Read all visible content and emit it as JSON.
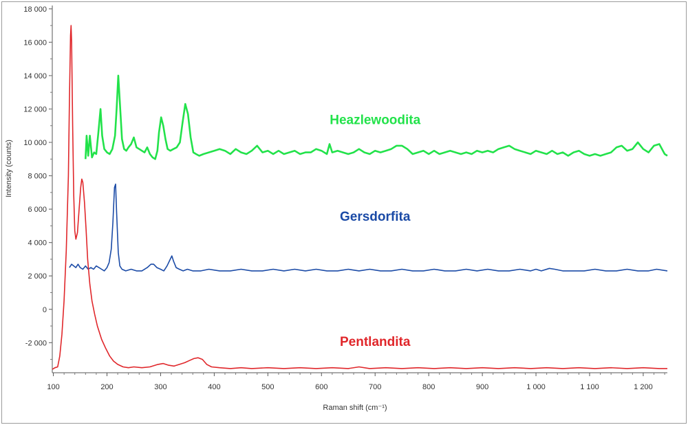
{
  "chart_data": {
    "type": "line",
    "title": "",
    "xlabel": "Raman shift (cm⁻¹)",
    "ylabel": "Intensity (counts)",
    "xlim": [
      98,
      1245
    ],
    "ylim": [
      -3800,
      18200
    ],
    "x_ticks": [
      100,
      200,
      300,
      400,
      500,
      600,
      700,
      800,
      900,
      1000,
      1100,
      1200
    ],
    "x_tick_labels": [
      "100",
      "200",
      "300",
      "400",
      "500",
      "600",
      "700",
      "800",
      "900",
      "1 000",
      "1 100",
      "1 200"
    ],
    "y_ticks": [
      -2000,
      0,
      2000,
      4000,
      6000,
      8000,
      10000,
      12000,
      14000,
      16000,
      18000
    ],
    "y_tick_labels": [
      "-2 000",
      "0",
      "2 000",
      "4 000",
      "6 000",
      "8 000",
      "10 000",
      "12 000",
      "14 000",
      "16 000",
      "18 000"
    ],
    "grid": false,
    "series": [
      {
        "name": "Heazlewoodita",
        "color": "#22e24a",
        "label_x": 700,
        "label_y": 11100,
        "points": [
          [
            160,
            9000
          ],
          [
            162,
            10400
          ],
          [
            165,
            9200
          ],
          [
            168,
            10400
          ],
          [
            172,
            9100
          ],
          [
            176,
            9400
          ],
          [
            180,
            9300
          ],
          [
            184,
            10600
          ],
          [
            188,
            12000
          ],
          [
            191,
            10400
          ],
          [
            195,
            9600
          ],
          [
            200,
            9400
          ],
          [
            205,
            9300
          ],
          [
            210,
            9600
          ],
          [
            215,
            10400
          ],
          [
            218,
            12000
          ],
          [
            221,
            14000
          ],
          [
            224,
            12400
          ],
          [
            228,
            10200
          ],
          [
            232,
            9600
          ],
          [
            236,
            9500
          ],
          [
            240,
            9700
          ],
          [
            245,
            9900
          ],
          [
            250,
            10300
          ],
          [
            255,
            9700
          ],
          [
            260,
            9600
          ],
          [
            265,
            9500
          ],
          [
            270,
            9400
          ],
          [
            275,
            9700
          ],
          [
            280,
            9300
          ],
          [
            285,
            9100
          ],
          [
            290,
            9000
          ],
          [
            294,
            9500
          ],
          [
            297,
            10600
          ],
          [
            301,
            11500
          ],
          [
            305,
            11000
          ],
          [
            309,
            10200
          ],
          [
            313,
            9600
          ],
          [
            318,
            9500
          ],
          [
            324,
            9600
          ],
          [
            330,
            9700
          ],
          [
            336,
            10000
          ],
          [
            341,
            11200
          ],
          [
            346,
            12300
          ],
          [
            351,
            11700
          ],
          [
            356,
            10300
          ],
          [
            361,
            9400
          ],
          [
            366,
            9300
          ],
          [
            372,
            9200
          ],
          [
            380,
            9300
          ],
          [
            390,
            9400
          ],
          [
            400,
            9500
          ],
          [
            410,
            9600
          ],
          [
            420,
            9500
          ],
          [
            430,
            9300
          ],
          [
            440,
            9600
          ],
          [
            450,
            9400
          ],
          [
            460,
            9300
          ],
          [
            470,
            9500
          ],
          [
            480,
            9800
          ],
          [
            490,
            9400
          ],
          [
            500,
            9500
          ],
          [
            510,
            9300
          ],
          [
            520,
            9500
          ],
          [
            530,
            9300
          ],
          [
            540,
            9400
          ],
          [
            550,
            9500
          ],
          [
            560,
            9300
          ],
          [
            570,
            9400
          ],
          [
            580,
            9400
          ],
          [
            590,
            9600
          ],
          [
            600,
            9500
          ],
          [
            610,
            9300
          ],
          [
            615,
            9900
          ],
          [
            620,
            9400
          ],
          [
            630,
            9500
          ],
          [
            640,
            9400
          ],
          [
            650,
            9300
          ],
          [
            660,
            9400
          ],
          [
            670,
            9600
          ],
          [
            680,
            9400
          ],
          [
            690,
            9300
          ],
          [
            700,
            9500
          ],
          [
            710,
            9400
          ],
          [
            720,
            9500
          ],
          [
            730,
            9600
          ],
          [
            740,
            9800
          ],
          [
            750,
            9800
          ],
          [
            760,
            9600
          ],
          [
            770,
            9300
          ],
          [
            780,
            9400
          ],
          [
            790,
            9500
          ],
          [
            800,
            9300
          ],
          [
            810,
            9500
          ],
          [
            820,
            9300
          ],
          [
            830,
            9400
          ],
          [
            840,
            9500
          ],
          [
            850,
            9400
          ],
          [
            860,
            9300
          ],
          [
            870,
            9400
          ],
          [
            880,
            9300
          ],
          [
            890,
            9500
          ],
          [
            900,
            9400
          ],
          [
            910,
            9500
          ],
          [
            920,
            9400
          ],
          [
            930,
            9600
          ],
          [
            940,
            9700
          ],
          [
            950,
            9800
          ],
          [
            960,
            9600
          ],
          [
            970,
            9500
          ],
          [
            980,
            9400
          ],
          [
            990,
            9300
          ],
          [
            1000,
            9500
          ],
          [
            1010,
            9400
          ],
          [
            1020,
            9300
          ],
          [
            1030,
            9500
          ],
          [
            1040,
            9300
          ],
          [
            1050,
            9400
          ],
          [
            1060,
            9200
          ],
          [
            1070,
            9400
          ],
          [
            1080,
            9500
          ],
          [
            1090,
            9300
          ],
          [
            1100,
            9200
          ],
          [
            1110,
            9300
          ],
          [
            1120,
            9200
          ],
          [
            1130,
            9300
          ],
          [
            1140,
            9400
          ],
          [
            1150,
            9700
          ],
          [
            1160,
            9800
          ],
          [
            1170,
            9500
          ],
          [
            1180,
            9600
          ],
          [
            1190,
            10000
          ],
          [
            1200,
            9600
          ],
          [
            1210,
            9400
          ],
          [
            1220,
            9800
          ],
          [
            1230,
            9900
          ],
          [
            1240,
            9300
          ],
          [
            1245,
            9200
          ]
        ]
      },
      {
        "name": "Gersdorfita",
        "color": "#1a4aa6",
        "label_x": 700,
        "label_y": 5300,
        "points": [
          [
            130,
            2500
          ],
          [
            134,
            2700
          ],
          [
            138,
            2600
          ],
          [
            142,
            2500
          ],
          [
            146,
            2700
          ],
          [
            150,
            2500
          ],
          [
            155,
            2400
          ],
          [
            160,
            2600
          ],
          [
            165,
            2400
          ],
          [
            170,
            2500
          ],
          [
            175,
            2400
          ],
          [
            180,
            2600
          ],
          [
            185,
            2500
          ],
          [
            190,
            2400
          ],
          [
            195,
            2300
          ],
          [
            200,
            2500
          ],
          [
            204,
            2800
          ],
          [
            208,
            3600
          ],
          [
            211,
            5200
          ],
          [
            214,
            7300
          ],
          [
            216,
            7500
          ],
          [
            218,
            5800
          ],
          [
            221,
            3400
          ],
          [
            224,
            2600
          ],
          [
            228,
            2400
          ],
          [
            235,
            2300
          ],
          [
            245,
            2400
          ],
          [
            255,
            2300
          ],
          [
            265,
            2300
          ],
          [
            275,
            2500
          ],
          [
            282,
            2700
          ],
          [
            287,
            2700
          ],
          [
            293,
            2500
          ],
          [
            300,
            2400
          ],
          [
            306,
            2300
          ],
          [
            312,
            2600
          ],
          [
            318,
            3000
          ],
          [
            321,
            3200
          ],
          [
            324,
            2900
          ],
          [
            329,
            2500
          ],
          [
            335,
            2400
          ],
          [
            342,
            2300
          ],
          [
            350,
            2400
          ],
          [
            360,
            2300
          ],
          [
            375,
            2300
          ],
          [
            390,
            2400
          ],
          [
            410,
            2300
          ],
          [
            430,
            2300
          ],
          [
            450,
            2400
          ],
          [
            470,
            2300
          ],
          [
            490,
            2300
          ],
          [
            510,
            2400
          ],
          [
            530,
            2300
          ],
          [
            550,
            2400
          ],
          [
            570,
            2300
          ],
          [
            590,
            2400
          ],
          [
            610,
            2300
          ],
          [
            630,
            2300
          ],
          [
            650,
            2400
          ],
          [
            670,
            2300
          ],
          [
            690,
            2400
          ],
          [
            710,
            2300
          ],
          [
            730,
            2300
          ],
          [
            750,
            2400
          ],
          [
            770,
            2300
          ],
          [
            790,
            2300
          ],
          [
            810,
            2400
          ],
          [
            830,
            2300
          ],
          [
            850,
            2300
          ],
          [
            870,
            2400
          ],
          [
            890,
            2300
          ],
          [
            910,
            2400
          ],
          [
            930,
            2300
          ],
          [
            950,
            2300
          ],
          [
            970,
            2400
          ],
          [
            990,
            2300
          ],
          [
            1000,
            2400
          ],
          [
            1010,
            2300
          ],
          [
            1025,
            2450
          ],
          [
            1035,
            2400
          ],
          [
            1050,
            2300
          ],
          [
            1070,
            2300
          ],
          [
            1090,
            2300
          ],
          [
            1110,
            2400
          ],
          [
            1130,
            2300
          ],
          [
            1150,
            2300
          ],
          [
            1170,
            2400
          ],
          [
            1190,
            2300
          ],
          [
            1210,
            2300
          ],
          [
            1225,
            2400
          ],
          [
            1245,
            2300
          ]
        ]
      },
      {
        "name": "Pentlandita",
        "color": "#e0262a",
        "label_x": 700,
        "label_y": -2200,
        "points": [
          [
            98,
            -3600
          ],
          [
            103,
            -3500
          ],
          [
            108,
            -3450
          ],
          [
            112,
            -2800
          ],
          [
            116,
            -1500
          ],
          [
            120,
            500
          ],
          [
            124,
            3500
          ],
          [
            128,
            8000
          ],
          [
            130,
            12500
          ],
          [
            132,
            16400
          ],
          [
            133,
            17000
          ],
          [
            134,
            16000
          ],
          [
            136,
            11000
          ],
          [
            138,
            6800
          ],
          [
            140,
            4700
          ],
          [
            142,
            4200
          ],
          [
            145,
            4600
          ],
          [
            148,
            6000
          ],
          [
            151,
            7300
          ],
          [
            153,
            7800
          ],
          [
            155,
            7600
          ],
          [
            158,
            6400
          ],
          [
            161,
            4800
          ],
          [
            164,
            3000
          ],
          [
            168,
            1500
          ],
          [
            172,
            500
          ],
          [
            177,
            -300
          ],
          [
            182,
            -1000
          ],
          [
            190,
            -1800
          ],
          [
            197,
            -2300
          ],
          [
            205,
            -2800
          ],
          [
            212,
            -3100
          ],
          [
            220,
            -3300
          ],
          [
            230,
            -3450
          ],
          [
            240,
            -3500
          ],
          [
            250,
            -3450
          ],
          [
            265,
            -3500
          ],
          [
            280,
            -3450
          ],
          [
            295,
            -3300
          ],
          [
            305,
            -3250
          ],
          [
            315,
            -3350
          ],
          [
            325,
            -3400
          ],
          [
            335,
            -3300
          ],
          [
            345,
            -3200
          ],
          [
            355,
            -3050
          ],
          [
            362,
            -2950
          ],
          [
            370,
            -2900
          ],
          [
            378,
            -3000
          ],
          [
            386,
            -3300
          ],
          [
            395,
            -3450
          ],
          [
            410,
            -3500
          ],
          [
            430,
            -3550
          ],
          [
            450,
            -3500
          ],
          [
            470,
            -3550
          ],
          [
            500,
            -3500
          ],
          [
            530,
            -3550
          ],
          [
            560,
            -3500
          ],
          [
            590,
            -3550
          ],
          [
            620,
            -3500
          ],
          [
            650,
            -3550
          ],
          [
            670,
            -3450
          ],
          [
            690,
            -3550
          ],
          [
            720,
            -3500
          ],
          [
            750,
            -3550
          ],
          [
            780,
            -3500
          ],
          [
            810,
            -3550
          ],
          [
            840,
            -3500
          ],
          [
            870,
            -3550
          ],
          [
            900,
            -3500
          ],
          [
            930,
            -3550
          ],
          [
            960,
            -3500
          ],
          [
            990,
            -3550
          ],
          [
            1020,
            -3500
          ],
          [
            1050,
            -3550
          ],
          [
            1080,
            -3500
          ],
          [
            1110,
            -3550
          ],
          [
            1140,
            -3500
          ],
          [
            1170,
            -3550
          ],
          [
            1200,
            -3500
          ],
          [
            1230,
            -3550
          ],
          [
            1245,
            -3550
          ]
        ]
      }
    ]
  }
}
